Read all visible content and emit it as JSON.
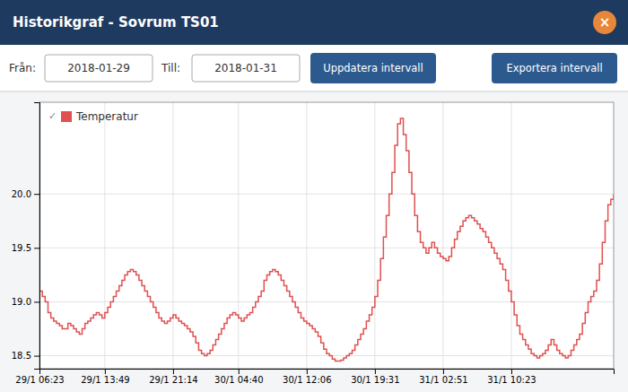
{
  "chart_data": {
    "type": "step",
    "title": "Historikgraf - Sovrum TS01",
    "annotations": [
      "Från:",
      "2018-01-29",
      "Till:",
      "2018-01-31",
      "Uppdatera intervall",
      "Exportera intervall",
      "×",
      "✓"
    ],
    "categories": [
      "29/1 06:23",
      null,
      null,
      null,
      null,
      null,
      null,
      null,
      null,
      null,
      null,
      null,
      null,
      null,
      null,
      null,
      null,
      null,
      null,
      null,
      null,
      null,
      null,
      "29/1 13:49",
      null,
      null,
      null,
      null,
      null,
      null,
      null,
      null,
      null,
      null,
      null,
      null,
      null,
      null,
      null,
      null,
      null,
      null,
      null,
      null,
      null,
      null,
      null,
      "29/1 21:14",
      null,
      null,
      null,
      null,
      null,
      null,
      null,
      null,
      null,
      null,
      null,
      null,
      null,
      null,
      null,
      null,
      null,
      null,
      null,
      null,
      null,
      null,
      "30/1 04:40",
      null,
      null,
      null,
      null,
      null,
      null,
      null,
      null,
      null,
      null,
      null,
      null,
      null,
      null,
      null,
      null,
      null,
      null,
      null,
      null,
      null,
      null,
      null,
      "30/1 12:06",
      null,
      null,
      null,
      null,
      null,
      null,
      null,
      null,
      null,
      null,
      null,
      null,
      null,
      null,
      null,
      null,
      null,
      null,
      null,
      null,
      null,
      null,
      null,
      "30/1 19:31",
      null,
      null,
      null,
      null,
      null,
      null,
      null,
      null,
      null,
      null,
      null,
      null,
      null,
      null,
      null,
      null,
      null,
      null,
      null,
      null,
      null,
      null,
      null,
      "31/1 02:51",
      null,
      null,
      null,
      null,
      null,
      null,
      null,
      null,
      null,
      null,
      null,
      null,
      null,
      null,
      null,
      null,
      null,
      null,
      null,
      null,
      null,
      null,
      null,
      "31/1 10:23",
      null,
      null,
      null,
      null,
      null,
      null,
      null,
      null,
      null,
      null,
      null,
      null,
      null,
      null,
      null,
      null,
      null,
      null,
      null,
      null,
      null,
      null,
      null,
      null,
      null,
      null,
      null,
      null,
      null,
      null,
      null,
      null,
      null,
      null,
      null,
      null
    ],
    "series": [
      {
        "name": "Temperatur",
        "color": "#e05050",
        "values": [
          19.1,
          19.05,
          19.0,
          18.9,
          18.85,
          18.82,
          18.8,
          18.78,
          18.75,
          18.75,
          18.8,
          18.78,
          18.75,
          18.72,
          18.7,
          18.75,
          18.8,
          18.82,
          18.85,
          18.88,
          18.9,
          18.88,
          18.85,
          18.9,
          18.95,
          19.0,
          19.05,
          19.1,
          19.15,
          19.2,
          19.25,
          19.28,
          19.3,
          19.28,
          19.25,
          19.2,
          19.15,
          19.1,
          19.05,
          19.0,
          18.95,
          18.9,
          18.85,
          18.82,
          18.8,
          18.82,
          18.85,
          18.88,
          18.85,
          18.82,
          18.8,
          18.78,
          18.75,
          18.72,
          18.68,
          18.62,
          18.55,
          18.52,
          18.5,
          18.52,
          18.55,
          18.6,
          18.65,
          18.7,
          18.75,
          18.8,
          18.85,
          18.88,
          18.9,
          18.88,
          18.85,
          18.82,
          18.85,
          18.88,
          18.9,
          18.95,
          19.0,
          19.05,
          19.1,
          19.2,
          19.25,
          19.28,
          19.3,
          19.28,
          19.25,
          19.2,
          19.15,
          19.1,
          19.05,
          19.0,
          18.95,
          18.9,
          18.85,
          18.82,
          18.8,
          18.78,
          18.75,
          18.72,
          18.68,
          18.62,
          18.56,
          18.52,
          18.5,
          18.47,
          18.45,
          18.45,
          18.46,
          18.48,
          18.5,
          18.52,
          18.55,
          18.6,
          18.65,
          18.7,
          18.75,
          18.82,
          18.88,
          18.95,
          19.05,
          19.2,
          19.4,
          19.6,
          19.8,
          20.0,
          20.2,
          20.45,
          20.65,
          20.7,
          20.55,
          20.4,
          20.2,
          20.0,
          19.8,
          19.65,
          19.55,
          19.5,
          19.45,
          19.5,
          19.55,
          19.5,
          19.45,
          19.42,
          19.4,
          19.38,
          19.42,
          19.5,
          19.58,
          19.65,
          19.7,
          19.75,
          19.78,
          19.8,
          19.78,
          19.75,
          19.72,
          19.68,
          19.65,
          19.6,
          19.55,
          19.5,
          19.45,
          19.4,
          19.35,
          19.3,
          19.2,
          19.1,
          19.0,
          18.88,
          18.78,
          18.7,
          18.65,
          18.6,
          18.56,
          18.52,
          18.5,
          18.48,
          18.5,
          18.52,
          18.55,
          18.6,
          18.65,
          18.6,
          18.55,
          18.52,
          18.5,
          18.48,
          18.5,
          18.55,
          18.6,
          18.65,
          18.7,
          18.8,
          18.9,
          19.0,
          19.05,
          19.1,
          19.2,
          19.35,
          19.55,
          19.75,
          19.9,
          19.95,
          20.0
        ]
      }
    ],
    "ylim": [
      18.38,
      20.85
    ],
    "yticks": [
      18.5,
      {
        "value": 19.0,
        "label": "19.0"
      },
      19.5,
      {
        "value": 20.0,
        "label": "20.0"
      }
    ],
    "grid": true,
    "legend": "upper left"
  }
}
